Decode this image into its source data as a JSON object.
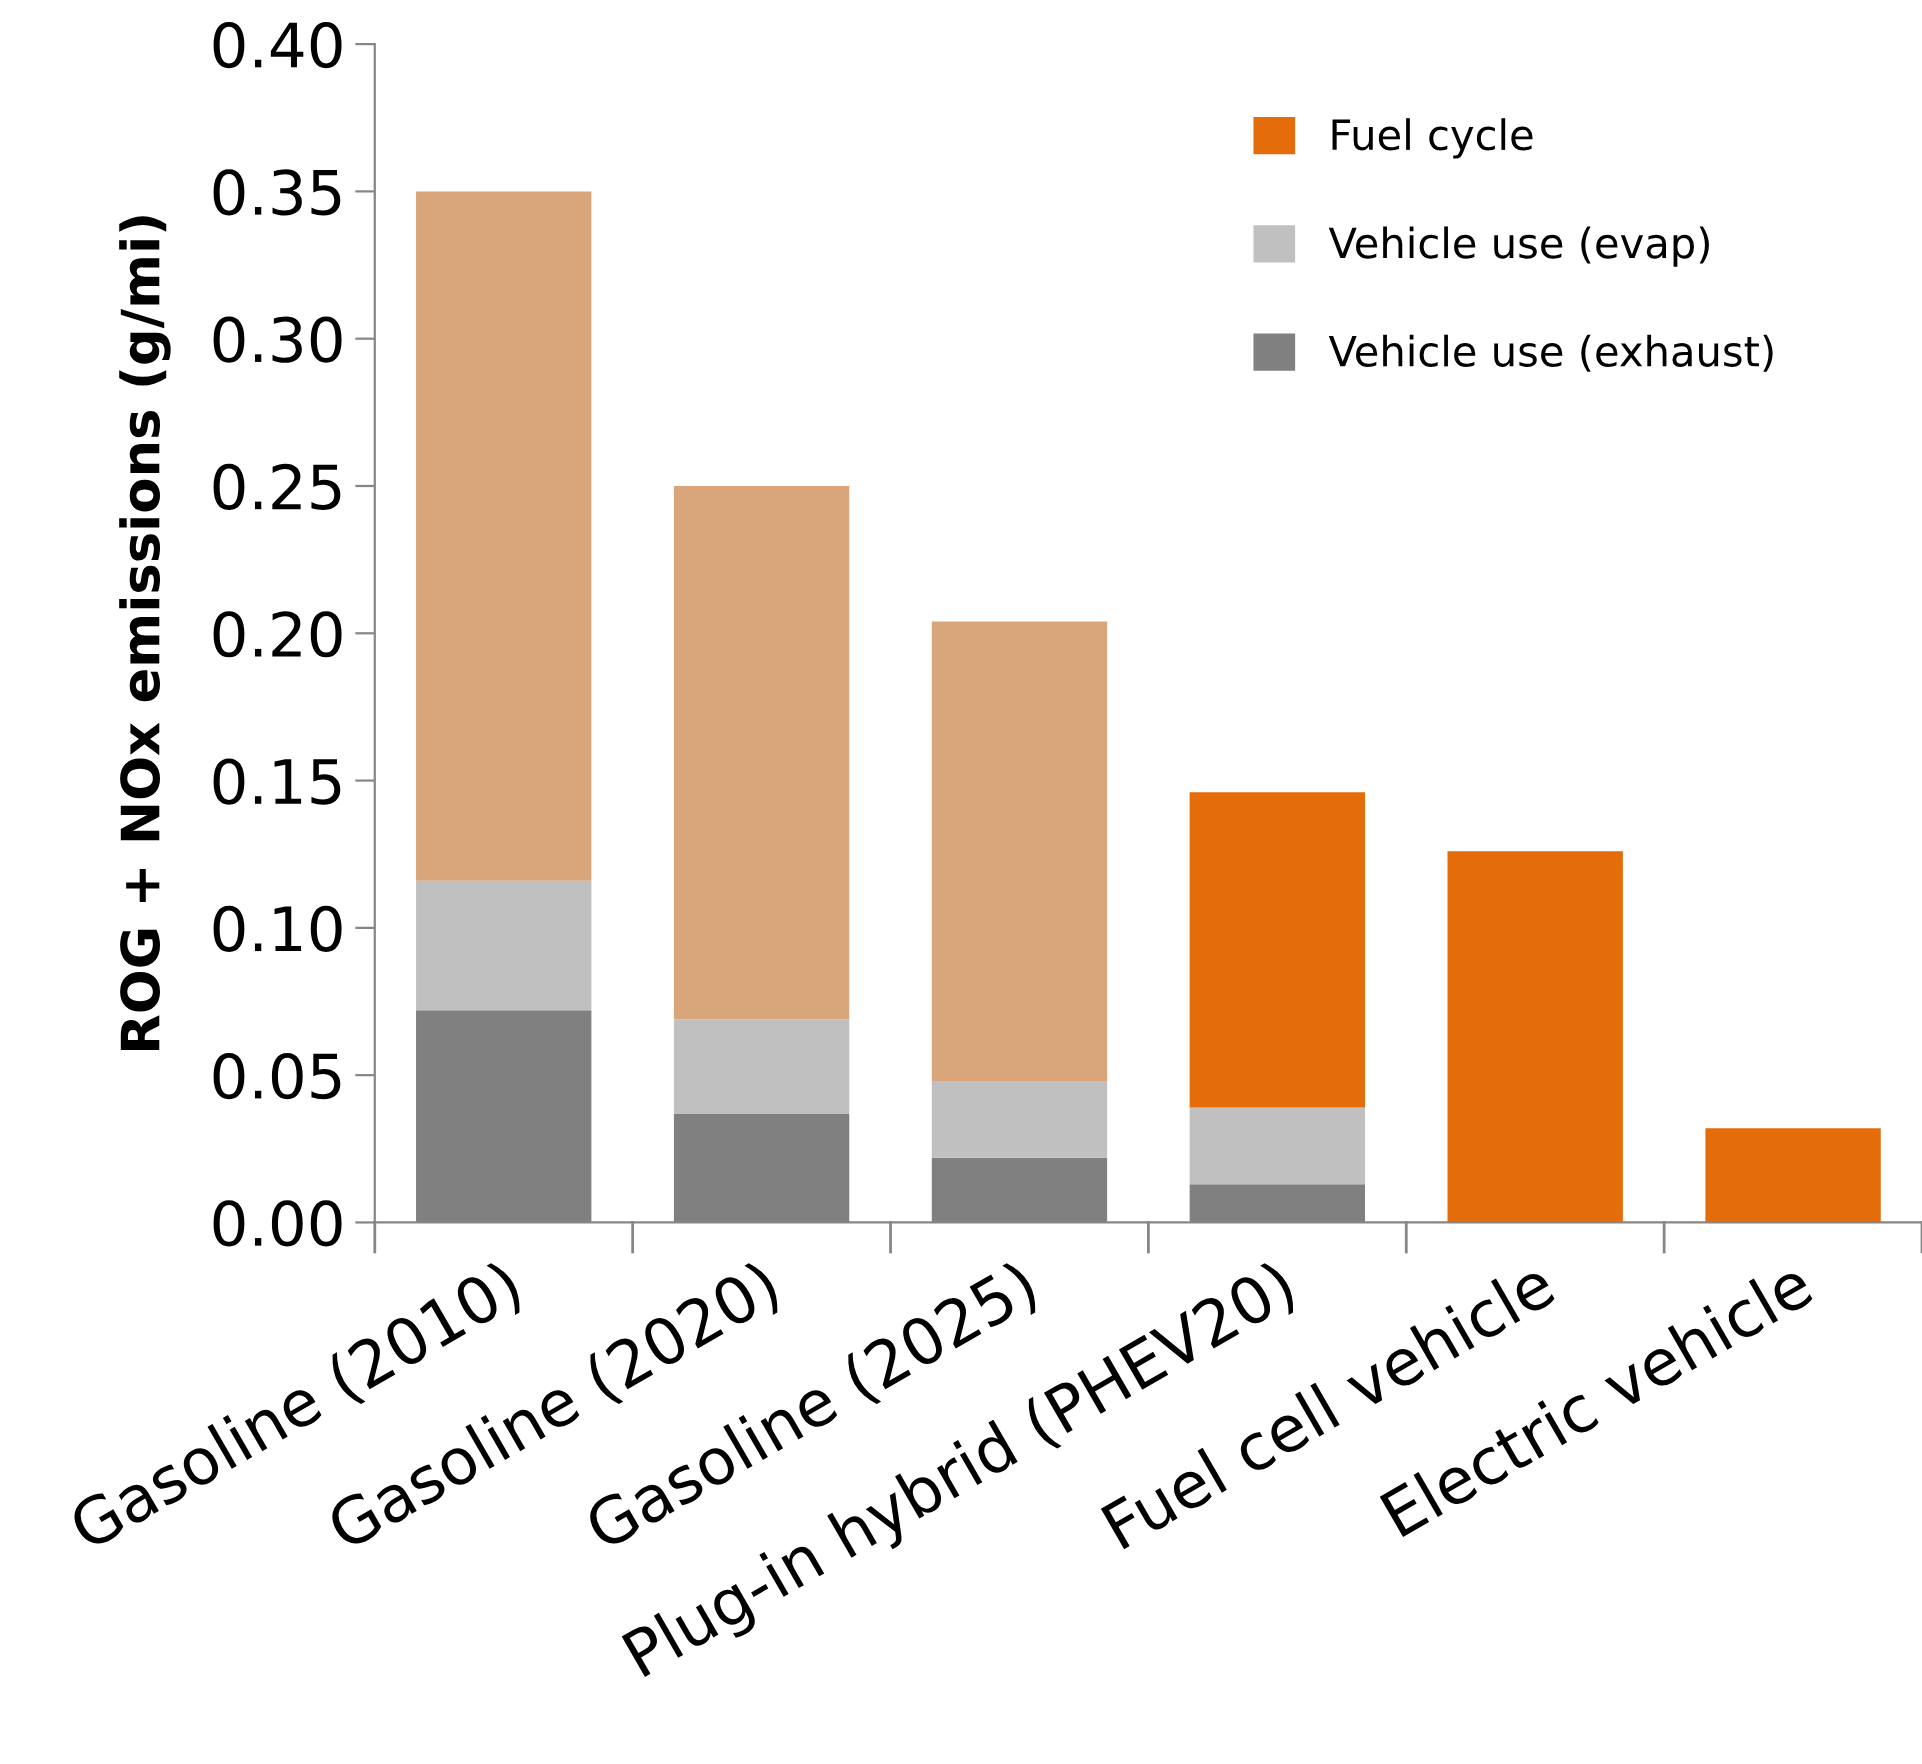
{
  "chart_data": {
    "type": "bar",
    "stacked": true,
    "ylabel": "ROG + NOx emissions (g/mi)",
    "categories": [
      "Gasoline (2010)",
      "Gasoline (2020)",
      "Gasoline (2025)",
      "Plug-in hybrid (PHEV20)",
      "Fuel cell vehicle",
      "Electric vehicle"
    ],
    "series": [
      {
        "name": "Vehicle use (exhaust)",
        "color": "#808080",
        "values": [
          0.072,
          0.037,
          0.022,
          0.013,
          null,
          null
        ]
      },
      {
        "name": "Vehicle use (evap)",
        "color": "#c0c0c0",
        "values": [
          0.044,
          0.032,
          0.026,
          0.026,
          null,
          null
        ]
      },
      {
        "name": "Fuel cycle",
        "color": "#e46c0a",
        "colors": [
          "#d9a57a",
          "#d9a57a",
          "#d9a57a",
          "#e46c0a",
          "#e46c0a",
          "#e46c0a"
        ],
        "values": [
          0.234,
          0.181,
          0.156,
          0.107,
          0.126,
          0.032
        ]
      }
    ],
    "ylim": [
      0,
      0.4
    ],
    "yticks": [
      {
        "value": 0,
        "label": "0.00"
      },
      {
        "value": 0.05,
        "label": "0.05"
      },
      {
        "value": 0.1,
        "label": "0.10"
      },
      {
        "value": 0.15,
        "label": "0.15"
      },
      {
        "value": 0.2,
        "label": "0.20"
      },
      {
        "value": 0.25,
        "label": "0.25"
      },
      {
        "value": 0.3,
        "label": "0.30"
      },
      {
        "value": 0.35,
        "label": "0.35"
      },
      {
        "value": 0.4,
        "label": "0.40"
      }
    ],
    "grid": false,
    "legend": "top right"
  }
}
